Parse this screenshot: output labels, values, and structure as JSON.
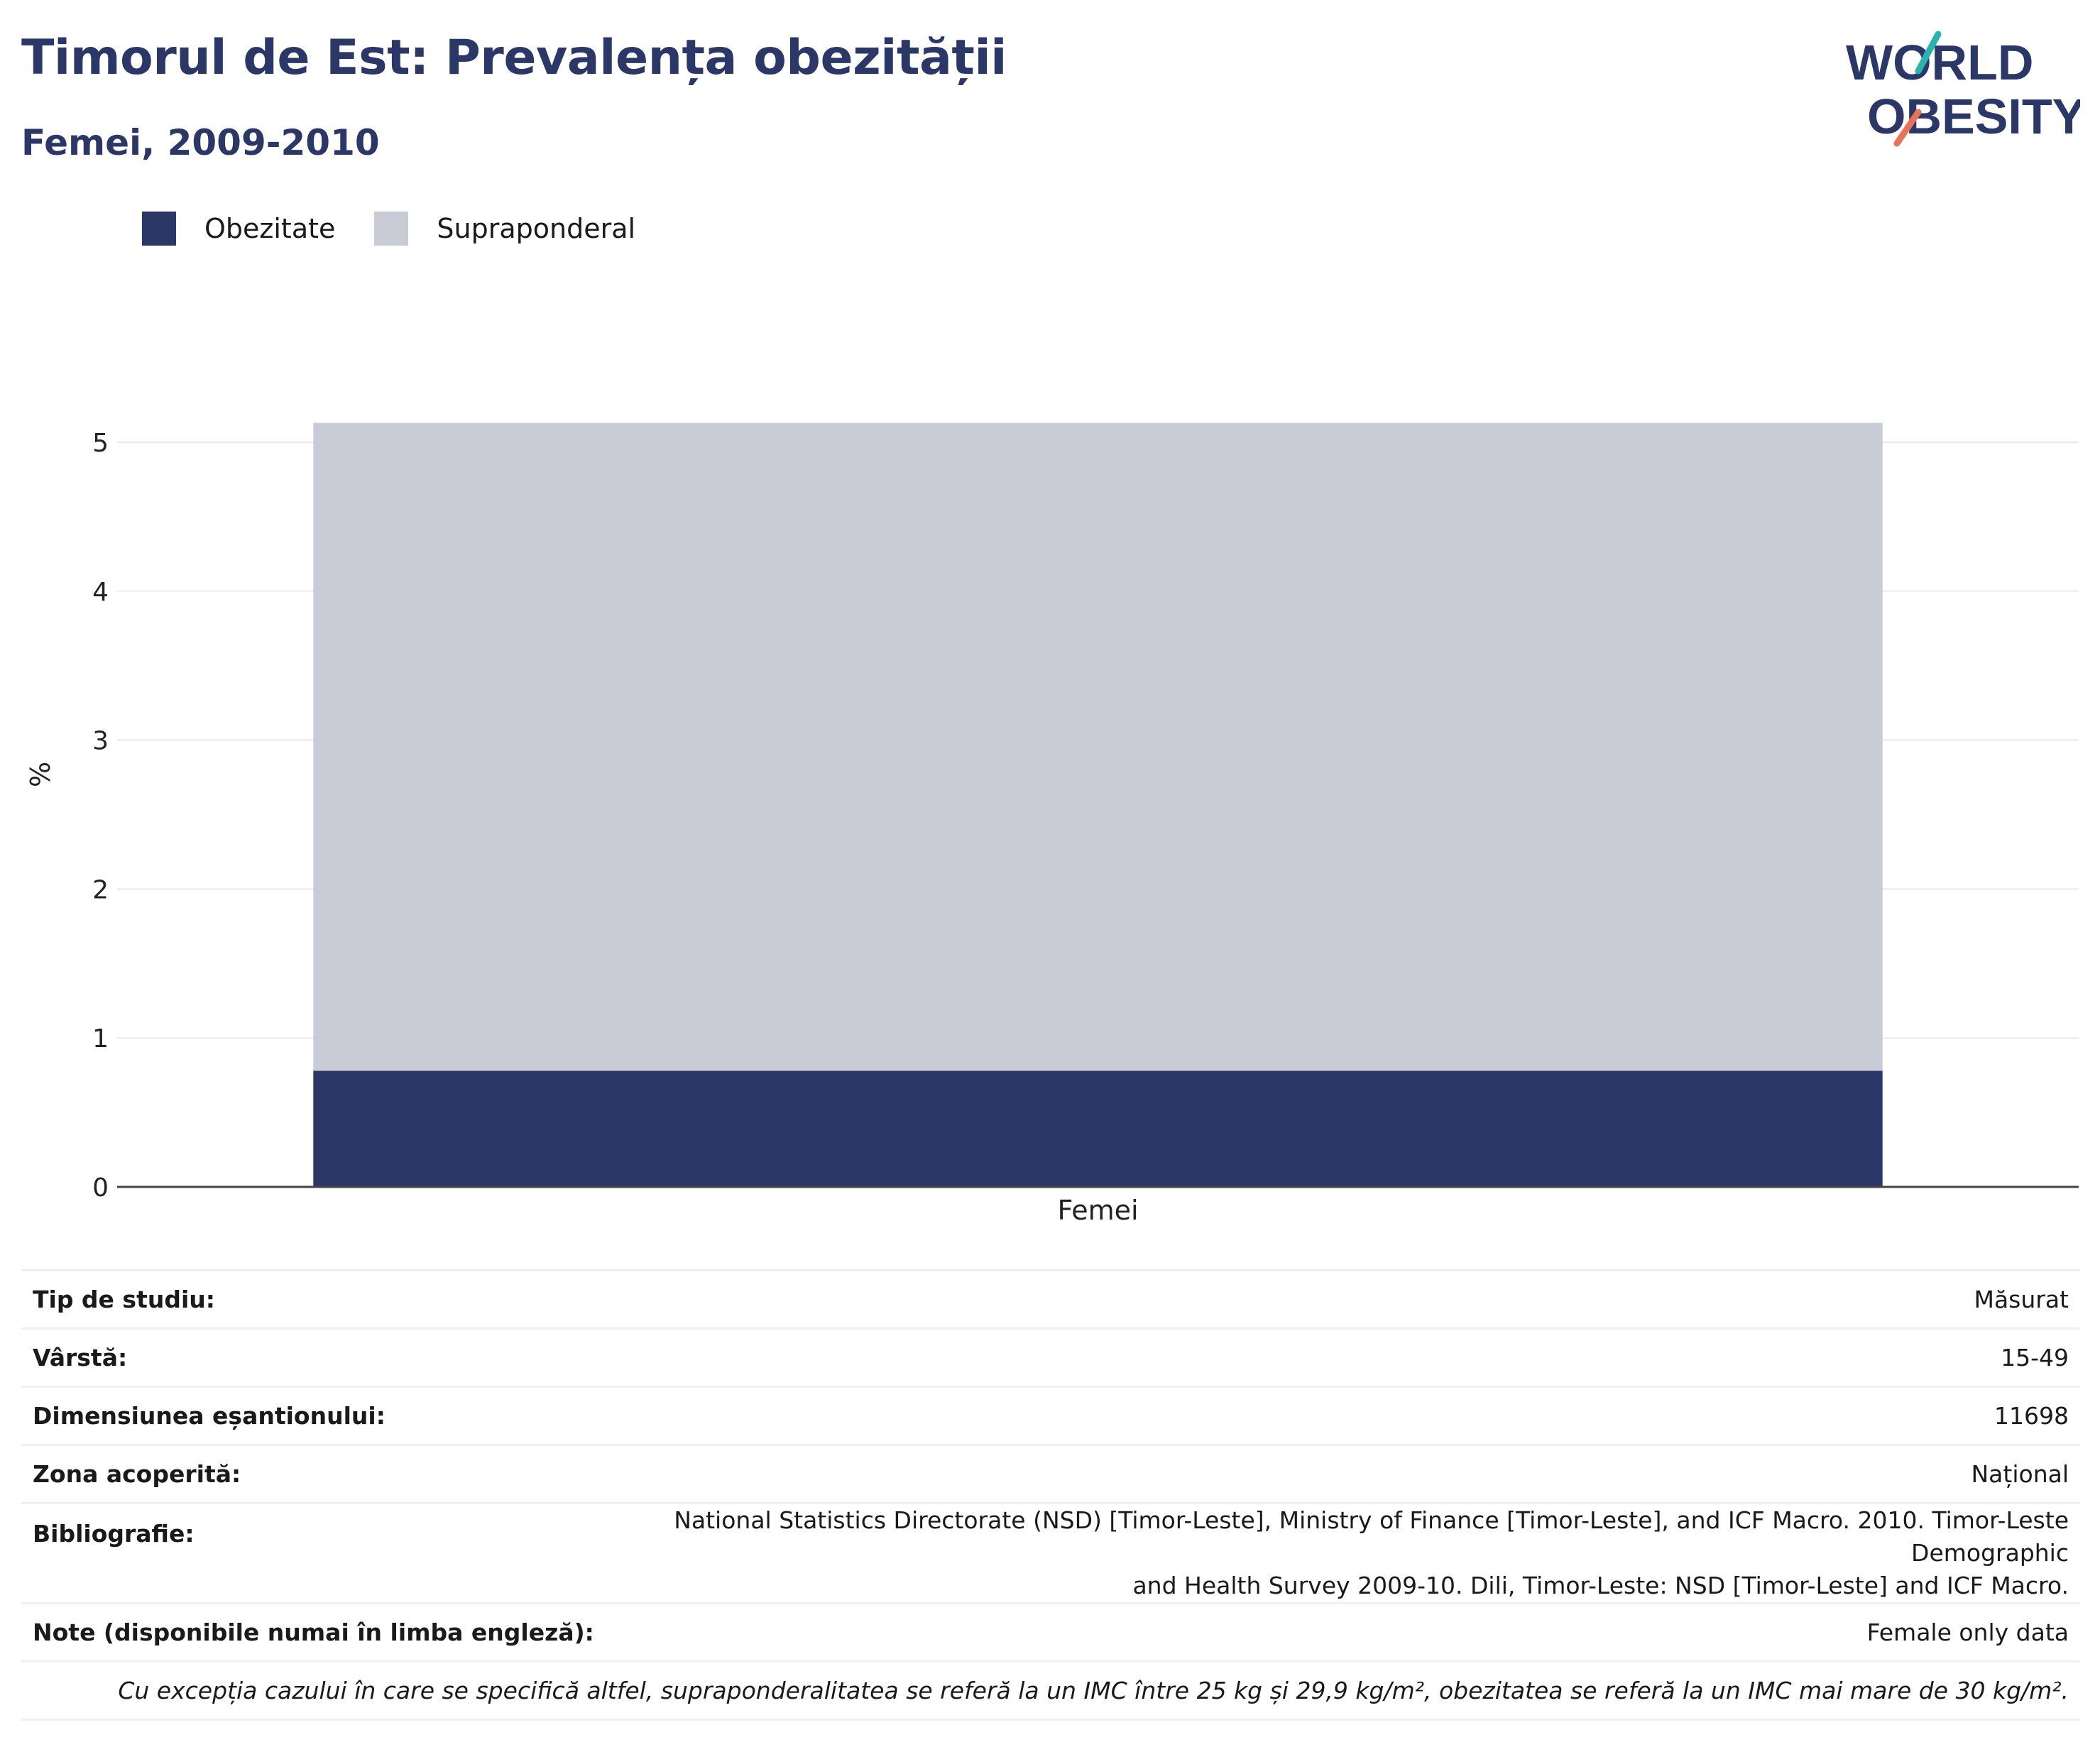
{
  "title": "Timorul de Est: Prevalența obezității",
  "subtitle": "Femei, 2009-2010",
  "logo": {
    "line1": "WORLD",
    "line2": "OBESITY"
  },
  "legend": [
    {
      "label": "Obezitate",
      "color": "#2b3766"
    },
    {
      "label": "Supraponderal",
      "color": "#c9ccd7"
    }
  ],
  "chart_data": {
    "type": "bar",
    "stacked": true,
    "categories": [
      "Femei"
    ],
    "series": [
      {
        "name": "Obezitate",
        "values": [
          0.78
        ],
        "color": "#2b3766"
      },
      {
        "name": "Supraponderal",
        "values": [
          4.35
        ],
        "color": "#c9ccd7"
      }
    ],
    "ylabel": "%",
    "xlabel": "",
    "ylim": [
      0,
      5.3
    ],
    "yticks": [
      0,
      1,
      2,
      3,
      4,
      5
    ],
    "grid": true,
    "legend_position": "top-left"
  },
  "info": [
    {
      "key": "Tip de studiu:",
      "value": "Măsurat"
    },
    {
      "key": "Vârstă:",
      "value": "15-49"
    },
    {
      "key": "Dimensiunea eșantionului:",
      "value": "11698"
    },
    {
      "key": "Zona acoperită:",
      "value": "Național"
    },
    {
      "key": "Bibliografie:",
      "value_line1": "National Statistics Directorate (NSD) [Timor-Leste], Ministry of Finance [Timor-Leste], and ICF Macro. 2010. Timor-Leste Demographic",
      "value_line2": "and Health Survey 2009-10. Dili, Timor-Leste: NSD [Timor-Leste] and ICF Macro."
    },
    {
      "key": "Note (disponibile numai în limba engleză):",
      "value": "Female only data"
    }
  ],
  "footnote": "Cu excepția cazului în care se specifică altfel, supraponderalitatea se referă la un IMC între 25 kg și 29,9 kg/m², obezitatea se referă la un IMC mai mare de 30 kg/m²."
}
